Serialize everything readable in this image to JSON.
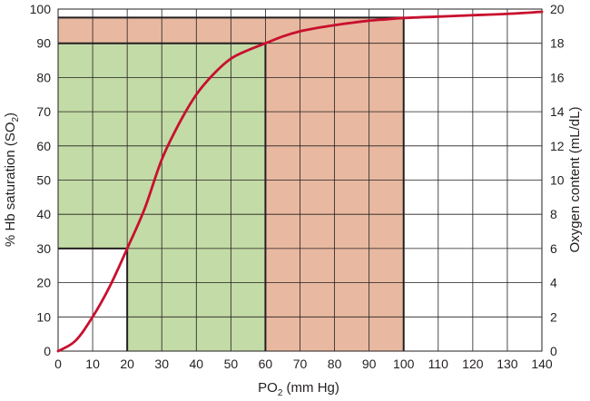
{
  "chart_data": {
    "type": "line",
    "title": "",
    "xlabel": "PO",
    "xlabel_sub": "2",
    "xlabel_unit": " (mm Hg)",
    "ylabel": "% Hb saturation (SO",
    "ylabel_sub": "2",
    "ylabel_end": ")",
    "y2label": "Oxygen content (mL/dL)",
    "xlim": [
      0,
      140
    ],
    "ylim": [
      0,
      100
    ],
    "y2lim": [
      0,
      20
    ],
    "x_ticks": [
      0,
      10,
      20,
      30,
      40,
      50,
      60,
      70,
      80,
      90,
      100,
      110,
      120,
      130,
      140
    ],
    "y_ticks": [
      0,
      10,
      20,
      30,
      40,
      50,
      60,
      70,
      80,
      90,
      100
    ],
    "y2_ticks": [
      0,
      2,
      4,
      6,
      8,
      10,
      12,
      14,
      16,
      18,
      20
    ],
    "grid": true,
    "series": [
      {
        "color": "#c8102e",
        "x": [
          0,
          5,
          10,
          15,
          20,
          25,
          30,
          35,
          40,
          45,
          50,
          55,
          60,
          65,
          70,
          75,
          80,
          85,
          90,
          95,
          100,
          110,
          120,
          130,
          140
        ],
        "y": [
          0,
          3,
          10,
          19,
          30,
          41.5,
          56,
          66.5,
          75,
          81,
          85.5,
          88,
          90,
          92,
          93.5,
          94.5,
          95.3,
          96,
          96.6,
          97,
          97.4,
          97.8,
          98.2,
          98.6,
          99.2
        ]
      }
    ],
    "regions": [
      {
        "x0": 0,
        "x1": 100,
        "y0": 0,
        "y1": 97.5,
        "color": "#e8b9a0"
      },
      {
        "x0": 0,
        "x1": 60,
        "y0": 0,
        "y1": 90,
        "color": "#c3dba6"
      },
      {
        "x0": 0,
        "x1": 20,
        "y0": 0,
        "y1": 30,
        "color": "#ffffff"
      }
    ],
    "reference_lines": [
      {
        "x": 20,
        "y": 30
      },
      {
        "x": 60,
        "y": 90
      },
      {
        "x": 100,
        "y": 97.5
      }
    ]
  }
}
